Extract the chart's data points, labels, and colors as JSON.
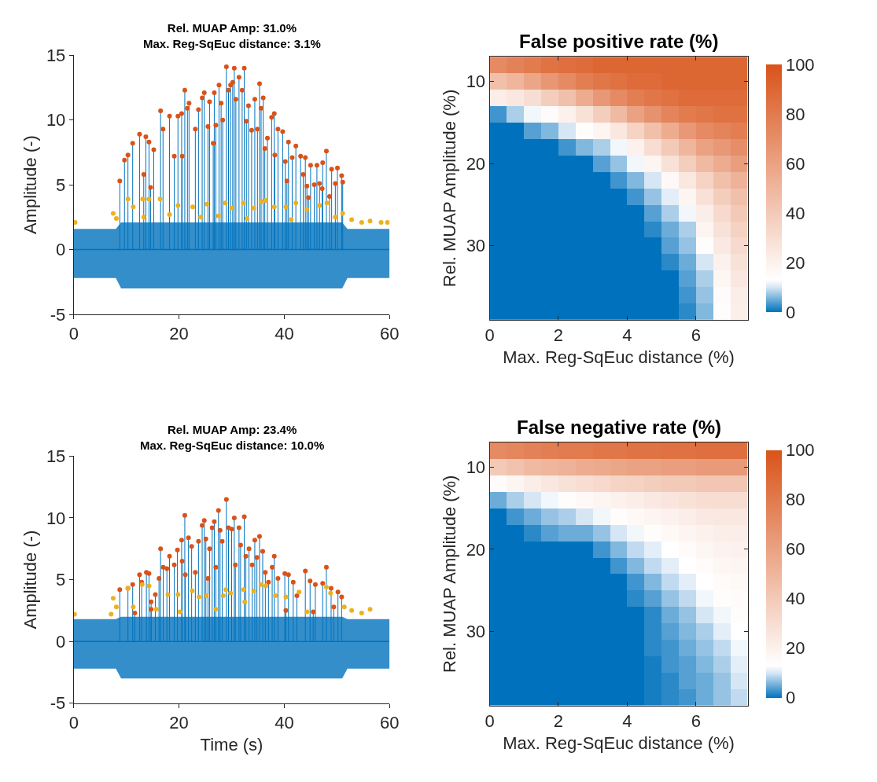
{
  "chart_data": [
    {
      "type": "line",
      "title": "Rel. MUAP Amp: 31.0%\nMax. Reg-SqEuc distance: 3.1%",
      "ylabel": "Amplitude (-)",
      "xlim": [
        0,
        60
      ],
      "xticks": [
        0,
        20,
        40,
        60
      ],
      "ylim": [
        -5,
        15
      ],
      "yticks": [
        -5,
        0,
        5,
        10,
        15
      ],
      "marker": "circle",
      "series": [
        {
          "type": "line",
          "marker": "none",
          "color": "#0072bd",
          "x": [
            0,
            8,
            9,
            51,
            52,
            60
          ],
          "values": [
            0,
            0,
            0,
            0,
            0,
            0
          ],
          "lower": [
            -2.2,
            -2.2,
            -3,
            -3,
            -2.2,
            -2.2
          ],
          "upper": [
            1.6,
            1.6,
            2.1,
            2.1,
            1.6,
            1.6
          ]
        },
        {
          "type": "lollipop",
          "color": "#d95319",
          "x": [
            8.75,
            9.64,
            10.3,
            11.2,
            12.5,
            13.3,
            13.7,
            14.3,
            14.6,
            15.2,
            16.5,
            16.96,
            18.2,
            19.1,
            19.8,
            20.5,
            20.6,
            21.1,
            21.6,
            21.9,
            23.1,
            23.7,
            24.4,
            24.8,
            25.5,
            25.8,
            26.5,
            26.7,
            27.0,
            27.6,
            28.0,
            28.3,
            29.0,
            29.4,
            29.8,
            30.2,
            30.5,
            30.8,
            31.4,
            32.0,
            32.4,
            32.8,
            33.2,
            33.8,
            34.4,
            34.9,
            35.3,
            35.6,
            36.0,
            36.3,
            36.8,
            37.6,
            38.1,
            38.2,
            38.8,
            39.7,
            40.2,
            40.5,
            40.8,
            41.5,
            42.2,
            43.1,
            43.6,
            44.0,
            44.3,
            44.6,
            45.0,
            45.7,
            46.2,
            46.7,
            47.2,
            47.3,
            48.0,
            48.6,
            49.0,
            49.7,
            50.1,
            50.9,
            51.1
          ],
          "values": [
            5.3,
            6.9,
            7.3,
            8.2,
            8.9,
            5.8,
            8.7,
            8.3,
            4.8,
            7.7,
            10.7,
            9.3,
            10.3,
            7.2,
            10.3,
            10.5,
            7.2,
            12.3,
            10.9,
            11.3,
            9.3,
            10.8,
            11.7,
            12.1,
            9.5,
            11.4,
            8.2,
            12.1,
            9.6,
            12.7,
            11.3,
            10.0,
            14.1,
            12.3,
            12.7,
            12.9,
            14.0,
            11.6,
            13.3,
            12.3,
            14.0,
            9.9,
            11.1,
            9.2,
            11.6,
            9.3,
            12.8,
            10.9,
            11.7,
            7.8,
            8.6,
            10.2,
            10.5,
            7.3,
            9.3,
            9.1,
            6.8,
            5.3,
            8.3,
            7.1,
            8.0,
            7.2,
            5.8,
            7.1,
            4.9,
            4.0,
            6.5,
            5.0,
            6.5,
            5.1,
            4.7,
            6.7,
            7.6,
            4.1,
            6.2,
            5.1,
            6.3,
            5.7,
            5.2
          ]
        },
        {
          "type": "scatter",
          "color": "#edb120",
          "x": [
            0.25,
            7.5,
            8.1,
            10.3,
            11.3,
            13.1,
            14.3,
            16.4,
            13.3,
            18.2,
            19.8,
            22.6,
            24.1,
            25.3,
            27.5,
            28.8,
            30.0,
            32.2,
            32.9,
            34.2,
            35.6,
            36.5,
            38.1,
            40.3,
            41.3,
            42.2,
            44.3,
            46.7,
            48.1,
            49.7,
            51.1,
            52.8,
            54.7,
            56.3,
            58.4,
            59.6
          ],
          "values": [
            2.1,
            2.8,
            2.4,
            3.9,
            3.3,
            3.9,
            3.9,
            3.9,
            2.5,
            2.7,
            3.4,
            3.3,
            2.5,
            3.5,
            2.6,
            3.6,
            3.2,
            3.6,
            2.4,
            3.2,
            3.7,
            3.8,
            3.3,
            3.3,
            2.3,
            3.6,
            3.1,
            3.4,
            3.6,
            2.5,
            2.8,
            2.3,
            2.1,
            2.2,
            2.1,
            2.1
          ]
        }
      ]
    },
    {
      "type": "heatmap",
      "title": "False positive rate (%)",
      "xlabel": "Max. Reg-SqEuc distance (%)",
      "ylabel": "Rel. MUAP Amplitude (%)",
      "xlim": [
        0,
        7.5
      ],
      "xticks": [
        0,
        2,
        4,
        6
      ],
      "clim": [
        0,
        100
      ],
      "cticks": [
        0,
        20,
        40,
        60,
        80,
        100
      ],
      "x": [
        0.25,
        0.75,
        1.25,
        1.75,
        2.25,
        2.75,
        3.25,
        3.75,
        4.25,
        4.75,
        5.25,
        5.75,
        6.25,
        6.75,
        7.25
      ],
      "y_categories": [
        null,
        "10",
        null,
        null,
        null,
        null,
        "20",
        null,
        null,
        null,
        null,
        "30",
        null,
        null,
        null,
        null
      ],
      "cells": [
        [
          72,
          76,
          80,
          84,
          86,
          88,
          90,
          90,
          90,
          90,
          90,
          90,
          90,
          90,
          90
        ],
        [
          45,
          50,
          58,
          66,
          72,
          78,
          82,
          85,
          88,
          88,
          90,
          90,
          90,
          90,
          90
        ],
        [
          22,
          25,
          30,
          38,
          45,
          55,
          65,
          72,
          78,
          82,
          85,
          88,
          88,
          88,
          88
        ],
        [
          3,
          8,
          12,
          15,
          20,
          28,
          38,
          48,
          60,
          68,
          75,
          80,
          82,
          85,
          85
        ],
        [
          0,
          0,
          4,
          6,
          10,
          14,
          18,
          25,
          35,
          45,
          55,
          65,
          72,
          75,
          78
        ],
        [
          0,
          0,
          0,
          0,
          3,
          6,
          8,
          12,
          20,
          30,
          40,
          50,
          60,
          65,
          70
        ],
        [
          0,
          0,
          0,
          0,
          0,
          0,
          4,
          7,
          12,
          18,
          28,
          38,
          48,
          55,
          62
        ],
        [
          0,
          0,
          0,
          0,
          0,
          0,
          0,
          3,
          6,
          10,
          16,
          25,
          35,
          45,
          52
        ],
        [
          0,
          0,
          0,
          0,
          0,
          0,
          0,
          0,
          3,
          7,
          11,
          18,
          28,
          38,
          45
        ],
        [
          0,
          0,
          0,
          0,
          0,
          0,
          0,
          0,
          0,
          4,
          8,
          12,
          22,
          32,
          40
        ],
        [
          0,
          0,
          0,
          0,
          0,
          0,
          0,
          0,
          0,
          2,
          5,
          8,
          18,
          28,
          36
        ],
        [
          0,
          0,
          0,
          0,
          0,
          0,
          0,
          0,
          0,
          0,
          4,
          7,
          14,
          24,
          32
        ],
        [
          0,
          0,
          0,
          0,
          0,
          0,
          0,
          0,
          0,
          0,
          2,
          5,
          10,
          20,
          28
        ],
        [
          0,
          0,
          0,
          0,
          0,
          0,
          0,
          0,
          0,
          0,
          0,
          4,
          8,
          17,
          25
        ],
        [
          0,
          0,
          0,
          0,
          0,
          0,
          0,
          0,
          0,
          0,
          0,
          3,
          7,
          15,
          22
        ],
        [
          0,
          0,
          0,
          0,
          0,
          0,
          0,
          0,
          0,
          0,
          0,
          2,
          6,
          14,
          21
        ]
      ]
    },
    {
      "type": "line",
      "title": "Rel. MUAP Amp: 23.4%\nMax. Reg-SqEuc distance: 10.0%",
      "xlabel": "Time (s)",
      "ylabel": "Amplitude (-)",
      "xlim": [
        0,
        60
      ],
      "xticks": [
        0,
        20,
        40,
        60
      ],
      "ylim": [
        -5,
        15
      ],
      "yticks": [
        -5,
        0,
        5,
        10,
        15
      ],
      "marker": "circle",
      "series": [
        {
          "type": "line",
          "marker": "none",
          "color": "#0072bd",
          "x": [
            0,
            8,
            9,
            51,
            52,
            60
          ],
          "values": [
            0,
            0,
            0,
            0,
            0,
            0
          ],
          "lower": [
            -2.2,
            -2.2,
            -3,
            -3,
            -2.2,
            -2.2
          ],
          "upper": [
            1.8,
            1.8,
            2.0,
            2.0,
            1.8,
            1.8
          ]
        },
        {
          "type": "lollipop",
          "color": "#d95319",
          "x": [
            8.75,
            10.3,
            11.2,
            11.6,
            12.5,
            12.9,
            13.8,
            14.3,
            14.7,
            14.7,
            15.5,
            16.2,
            16.5,
            17.0,
            17.7,
            18.2,
            19.1,
            19.7,
            20.5,
            20.6,
            21.1,
            21.2,
            21.8,
            22.4,
            23.1,
            23.7,
            24.4,
            24.8,
            25.1,
            25.5,
            25.8,
            26.3,
            26.7,
            27.0,
            27.5,
            27.8,
            28.2,
            29.0,
            29.4,
            30.0,
            30.5,
            30.7,
            31.4,
            31.7,
            32.4,
            32.7,
            33.3,
            33.9,
            34.4,
            34.8,
            35.3,
            35.9,
            36.4,
            37.0,
            37.7,
            38.1,
            38.8,
            40.1,
            40.3,
            40.8,
            41.7,
            42.4,
            44.0,
            44.9,
            45.5,
            45.9,
            47.3,
            48.0,
            48.9,
            49.4,
            50.2,
            50.9
          ],
          "values": [
            4.2,
            4.3,
            4.6,
            2.3,
            5.4,
            4.8,
            5.6,
            5.5,
            3.2,
            2.6,
            3.8,
            5.1,
            7.5,
            6.0,
            5.9,
            6.9,
            6.2,
            7.4,
            8.2,
            6.5,
            10.2,
            5.4,
            8.4,
            7.7,
            5.6,
            8.1,
            9.4,
            9.8,
            8.3,
            5.1,
            7.5,
            9.2,
            9.7,
            6.0,
            10.6,
            9.0,
            8.1,
            11.5,
            9.2,
            9.1,
            10.0,
            6.2,
            9.2,
            7.8,
            10.1,
            6.9,
            7.5,
            6.2,
            8.2,
            6.8,
            8.5,
            7.3,
            5.6,
            4.8,
            6.0,
            6.9,
            5.1,
            5.5,
            2.5,
            5.4,
            4.8,
            3.7,
            5.7,
            4.9,
            2.4,
            4.6,
            4.7,
            6.0,
            4.3,
            2.8,
            4.0,
            3.6
          ]
        },
        {
          "type": "scatter",
          "color": "#edb120",
          "x": [
            0.15,
            7.1,
            7.5,
            8.1,
            10.3,
            11.3,
            13.0,
            14.3,
            15.7,
            17.9,
            19.8,
            20.2,
            22.5,
            23.8,
            25.2,
            27.0,
            28.4,
            28.9,
            29.8,
            32.3,
            32.5,
            34.2,
            35.6,
            36.5,
            38.3,
            40.3,
            42.8,
            44.3,
            48.0,
            48.8,
            51.4,
            52.8,
            54.7,
            56.3
          ],
          "values": [
            2.2,
            2.2,
            3.5,
            2.8,
            4.3,
            2.8,
            4.6,
            4.5,
            2.6,
            3.8,
            3.8,
            2.4,
            4.1,
            3.6,
            3.7,
            2.6,
            3.7,
            4.2,
            3.9,
            4.2,
            3.2,
            4.1,
            4.6,
            4.5,
            3.7,
            3.6,
            4.0,
            2.4,
            4.4,
            3.9,
            2.8,
            2.5,
            2.3,
            2.6
          ]
        }
      ]
    },
    {
      "type": "heatmap",
      "title": "False negative rate (%)",
      "xlabel": "Max. Reg-SqEuc distance (%)",
      "ylabel": "Rel. MUAP Amplitude (%)",
      "xlim": [
        0,
        7.5
      ],
      "xticks": [
        0,
        2,
        4,
        6
      ],
      "clim": [
        0,
        100
      ],
      "cticks": [
        0,
        20,
        40,
        60,
        80,
        100
      ],
      "x": [
        0.25,
        0.75,
        1.25,
        1.75,
        2.25,
        2.75,
        3.25,
        3.75,
        4.25,
        4.75,
        5.25,
        5.75,
        6.25,
        6.75,
        7.25
      ],
      "y_categories": [
        null,
        "10",
        null,
        null,
        null,
        null,
        "20",
        null,
        null,
        null,
        null,
        "30",
        null,
        null,
        null,
        null
      ],
      "cells": [
        [
          72,
          74,
          76,
          78,
          80,
          80,
          82,
          82,
          84,
          84,
          85,
          85,
          86,
          86,
          86
        ],
        [
          40,
          44,
          48,
          50,
          52,
          55,
          56,
          58,
          60,
          60,
          62,
          62,
          64,
          64,
          64
        ],
        [
          15,
          18,
          22,
          25,
          28,
          30,
          32,
          35,
          36,
          38,
          40,
          40,
          42,
          42,
          42
        ],
        [
          5,
          8,
          10,
          12,
          14,
          16,
          18,
          20,
          22,
          24,
          26,
          28,
          30,
          30,
          30
        ],
        [
          0,
          3,
          5,
          7,
          8,
          10,
          12,
          14,
          16,
          18,
          20,
          22,
          24,
          25,
          25
        ],
        [
          0,
          0,
          2,
          4,
          5,
          5,
          7,
          10,
          12,
          14,
          16,
          18,
          20,
          22,
          22
        ],
        [
          0,
          0,
          0,
          0,
          0,
          0,
          3,
          6,
          9,
          11,
          13,
          15,
          17,
          19,
          20
        ],
        [
          0,
          0,
          0,
          0,
          0,
          0,
          0,
          3,
          6,
          9,
          11,
          13,
          15,
          17,
          18
        ],
        [
          0,
          0,
          0,
          0,
          0,
          0,
          0,
          0,
          3,
          6,
          9,
          11,
          13,
          15,
          16
        ],
        [
          0,
          0,
          0,
          0,
          0,
          0,
          0,
          0,
          2,
          4,
          7,
          9,
          12,
          14,
          15
        ],
        [
          0,
          0,
          0,
          0,
          0,
          0,
          0,
          0,
          0,
          2,
          5,
          7,
          10,
          12,
          14
        ],
        [
          0,
          0,
          0,
          0,
          0,
          0,
          0,
          0,
          0,
          2,
          4,
          6,
          8,
          11,
          13
        ],
        [
          0,
          0,
          0,
          0,
          0,
          0,
          0,
          0,
          0,
          2,
          3,
          5,
          7,
          9,
          12
        ],
        [
          0,
          0,
          0,
          0,
          0,
          0,
          0,
          0,
          0,
          1,
          3,
          4,
          6,
          8,
          11
        ],
        [
          0,
          0,
          0,
          0,
          0,
          0,
          0,
          0,
          0,
          1,
          2,
          4,
          5,
          7,
          10
        ],
        [
          0,
          0,
          0,
          0,
          0,
          0,
          0,
          0,
          0,
          1,
          2,
          3,
          5,
          7,
          9
        ]
      ]
    }
  ]
}
